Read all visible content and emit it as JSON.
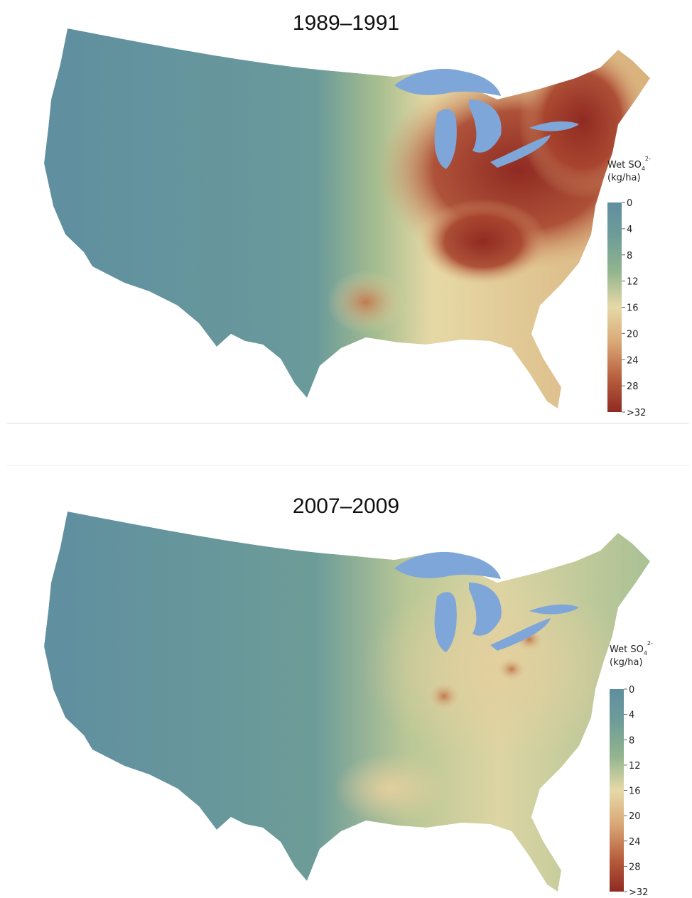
{
  "panels": [
    {
      "title": "1989–1991",
      "legend": {
        "title": "Wet SO",
        "title_sub": "4",
        "title_sup": "2-",
        "unit": "(kg/ha)",
        "labels": [
          0,
          4,
          8,
          12,
          16,
          20,
          24,
          28,
          ">32"
        ]
      }
    },
    {
      "title": "2007–2009",
      "legend": {
        "title": "Wet SO",
        "title_sub": "4",
        "title_sup": "2-",
        "unit": "(kg/ha)",
        "labels": [
          0,
          4,
          8,
          12,
          16,
          20,
          24,
          28,
          ">32"
        ]
      }
    }
  ],
  "colorbar": [
    "#5f8fa0",
    "#6f9d98",
    "#93b58e",
    "#e6d9a8",
    "#d9a877",
    "#b9603f",
    "#8f2a22"
  ]
}
